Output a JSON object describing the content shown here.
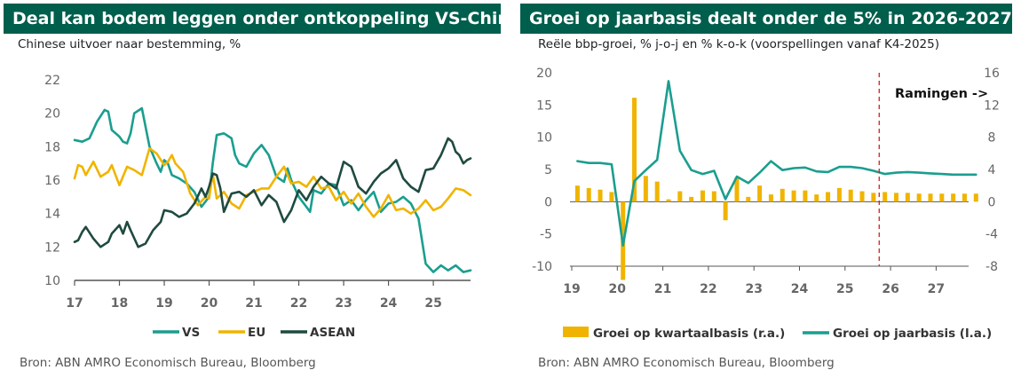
{
  "colors": {
    "green": "#1a9e8f",
    "yellow": "#f0b400",
    "dark": "#1f4a40",
    "title_bg": "#005e4c",
    "dashed": "#d12020"
  },
  "left": {
    "title": "Deal kan bodem leggen onder ontkoppeling VS-China",
    "subtitle": "Chinese uitvoer naar bestemming, %",
    "source": "Bron: ABN AMRO Economisch Bureau, Bloomberg"
  },
  "right": {
    "title": "Groei op jaarbasis dealt onder de 5% in 2026-2027",
    "subtitle": "Reële bbp-groei, % j-o-j en % k-o-k (voorspellingen vanaf K4-2025)",
    "source": "Bron: ABN AMRO Economisch Bureau, Bloomberg"
  },
  "chart_data": [
    {
      "type": "line",
      "title": "Deal kan bodem leggen onder ontkoppeling VS-China",
      "ylabel": "Chinese uitvoer naar bestemming, %",
      "ylim": [
        10,
        22
      ],
      "yticks": [
        "10",
        "12",
        "14",
        "16",
        "18",
        "20",
        "22"
      ],
      "xlim": [
        2017,
        2025.83
      ],
      "xticks": [
        "17",
        "18",
        "19",
        "20",
        "21",
        "22",
        "23",
        "24",
        "25"
      ],
      "legend": [
        "VS",
        "EU",
        "ASEAN"
      ],
      "series": [
        {
          "name": "VS",
          "color": "#1a9e8f",
          "x": [
            2017.0,
            2017.17,
            2017.33,
            2017.5,
            2017.67,
            2017.75,
            2017.83,
            2018.0,
            2018.08,
            2018.17,
            2018.25,
            2018.33,
            2018.5,
            2018.67,
            2018.83,
            2018.92,
            2019.0,
            2019.08,
            2019.17,
            2019.33,
            2019.5,
            2019.67,
            2019.83,
            2020.0,
            2020.08,
            2020.17,
            2020.33,
            2020.5,
            2020.58,
            2020.67,
            2020.83,
            2021.0,
            2021.17,
            2021.33,
            2021.5,
            2021.67,
            2021.75,
            2021.83,
            2022.0,
            2022.17,
            2022.25,
            2022.33,
            2022.5,
            2022.67,
            2022.83,
            2023.0,
            2023.17,
            2023.33,
            2023.5,
            2023.67,
            2023.83,
            2024.0,
            2024.17,
            2024.33,
            2024.5,
            2024.67,
            2024.83,
            2025.0,
            2025.17,
            2025.33,
            2025.5,
            2025.67,
            2025.83
          ],
          "values": [
            18.4,
            18.3,
            18.5,
            19.5,
            20.2,
            20.1,
            19.0,
            18.6,
            18.3,
            18.2,
            18.8,
            20.0,
            20.3,
            18.0,
            17.0,
            16.5,
            17.2,
            17.0,
            16.3,
            16.1,
            15.8,
            15.3,
            14.4,
            15.0,
            17.0,
            18.7,
            18.8,
            18.5,
            17.5,
            17.0,
            16.8,
            17.6,
            18.1,
            17.5,
            16.2,
            15.9,
            16.7,
            16.0,
            15.0,
            14.4,
            14.1,
            15.4,
            15.2,
            15.8,
            15.7,
            14.5,
            14.8,
            14.2,
            14.8,
            15.3,
            14.1,
            14.6,
            14.7,
            15.0,
            14.6,
            13.7,
            11.0,
            10.5,
            10.9,
            10.6,
            10.9,
            10.5,
            10.6
          ]
        },
        {
          "name": "EU",
          "color": "#f0b400",
          "x": [
            2017.0,
            2017.08,
            2017.17,
            2017.25,
            2017.42,
            2017.58,
            2017.75,
            2017.83,
            2018.0,
            2018.17,
            2018.33,
            2018.5,
            2018.67,
            2018.83,
            2019.0,
            2019.08,
            2019.17,
            2019.25,
            2019.42,
            2019.58,
            2019.75,
            2019.92,
            2020.0,
            2020.08,
            2020.17,
            2020.33,
            2020.5,
            2020.67,
            2020.83,
            2021.0,
            2021.17,
            2021.33,
            2021.5,
            2021.67,
            2021.83,
            2022.0,
            2022.17,
            2022.33,
            2022.5,
            2022.67,
            2022.83,
            2023.0,
            2023.17,
            2023.33,
            2023.5,
            2023.67,
            2023.83,
            2024.0,
            2024.17,
            2024.33,
            2024.5,
            2024.67,
            2024.83,
            2025.0,
            2025.17,
            2025.33,
            2025.5,
            2025.67,
            2025.83
          ],
          "values": [
            16.1,
            16.9,
            16.8,
            16.3,
            17.1,
            16.2,
            16.5,
            16.9,
            15.7,
            16.8,
            16.6,
            16.3,
            17.9,
            17.6,
            16.9,
            17.1,
            17.5,
            17.0,
            16.5,
            15.2,
            14.5,
            15.0,
            14.9,
            16.4,
            14.9,
            15.3,
            14.6,
            14.3,
            15.1,
            15.3,
            15.5,
            15.5,
            16.2,
            16.8,
            15.8,
            15.9,
            15.6,
            16.2,
            15.5,
            15.6,
            14.8,
            15.3,
            14.6,
            15.2,
            14.4,
            13.8,
            14.3,
            15.1,
            14.2,
            14.3,
            14.0,
            14.3,
            14.8,
            14.2,
            14.4,
            14.9,
            15.5,
            15.4,
            15.1
          ]
        },
        {
          "name": "ASEAN",
          "color": "#1f4a40",
          "x": [
            2017.0,
            2017.08,
            2017.17,
            2017.25,
            2017.42,
            2017.58,
            2017.75,
            2017.83,
            2018.0,
            2018.08,
            2018.17,
            2018.25,
            2018.42,
            2018.58,
            2018.75,
            2018.92,
            2019.0,
            2019.17,
            2019.33,
            2019.5,
            2019.67,
            2019.83,
            2019.92,
            2020.0,
            2020.08,
            2020.17,
            2020.25,
            2020.33,
            2020.5,
            2020.67,
            2020.83,
            2021.0,
            2021.17,
            2021.33,
            2021.5,
            2021.67,
            2021.83,
            2022.0,
            2022.17,
            2022.33,
            2022.5,
            2022.67,
            2022.83,
            2023.0,
            2023.17,
            2023.33,
            2023.5,
            2023.67,
            2023.83,
            2024.0,
            2024.17,
            2024.33,
            2024.5,
            2024.67,
            2024.83,
            2025.0,
            2025.17,
            2025.33,
            2025.42,
            2025.5,
            2025.58,
            2025.67,
            2025.75,
            2025.83
          ],
          "values": [
            12.3,
            12.4,
            12.9,
            13.2,
            12.5,
            12.0,
            12.3,
            12.8,
            13.3,
            12.8,
            13.5,
            13.0,
            12.0,
            12.2,
            13.0,
            13.5,
            14.2,
            14.1,
            13.8,
            14.0,
            14.6,
            15.5,
            15.0,
            15.6,
            16.4,
            16.3,
            15.5,
            14.1,
            15.2,
            15.3,
            15.0,
            15.4,
            14.5,
            15.1,
            14.7,
            13.5,
            14.2,
            15.4,
            14.8,
            15.6,
            16.2,
            15.8,
            15.5,
            17.1,
            16.8,
            15.6,
            15.2,
            15.9,
            16.4,
            16.7,
            17.2,
            16.1,
            15.6,
            15.3,
            16.6,
            16.7,
            17.5,
            18.5,
            18.3,
            17.7,
            17.5,
            17.0,
            17.2,
            17.3
          ]
        }
      ]
    },
    {
      "type": "bar+line",
      "title": "Groei op jaarbasis dealt onder de 5% in 2026-2027",
      "ylabel": "Reële bbp-groei, % j-o-j en % k-o-k",
      "left_axis": {
        "ylim": [
          -10,
          20
        ],
        "yticks": [
          "-10",
          "-5",
          "0",
          "5",
          "10",
          "15",
          "20"
        ]
      },
      "right_axis": {
        "ylim": [
          -8,
          16
        ],
        "yticks": [
          "-8",
          "-4",
          "0",
          "4",
          "8",
          "12",
          "16"
        ]
      },
      "xticks": [
        "19",
        "20",
        "21",
        "22",
        "23",
        "24",
        "25",
        "26",
        "27"
      ],
      "forecast_label": "Ramingen ->",
      "forecast_start": "K4-2025",
      "legend": [
        "Groei op kwartaalbasis (r.a.)",
        "Groei op jaarbasis (l.a.)"
      ],
      "series": [
        {
          "name": "Groei op kwartaalbasis (r.a.)",
          "type": "bar",
          "axis": "right",
          "color": "#f0b400",
          "categories": [
            "2019K1",
            "2019K2",
            "2019K3",
            "2019K4",
            "2020K1",
            "2020K2",
            "2020K3",
            "2020K4",
            "2021K1",
            "2021K2",
            "2021K3",
            "2021K4",
            "2022K1",
            "2022K2",
            "2022K3",
            "2022K4",
            "2023K1",
            "2023K2",
            "2023K3",
            "2023K4",
            "2024K1",
            "2024K2",
            "2024K3",
            "2024K4",
            "2025K1",
            "2025K2",
            "2025K3",
            "2025K4",
            "2026K1",
            "2026K2",
            "2026K3",
            "2026K4",
            "2027K1",
            "2027K2",
            "2027K3",
            "2027K4"
          ],
          "values": [
            2.0,
            1.7,
            1.5,
            1.2,
            -9.7,
            12.9,
            3.2,
            2.5,
            0.3,
            1.3,
            0.6,
            1.4,
            1.3,
            -2.3,
            3.0,
            0.6,
            2.0,
            0.9,
            1.6,
            1.4,
            1.4,
            0.9,
            1.2,
            1.7,
            1.5,
            1.3,
            1.1,
            1.2,
            1.1,
            1.1,
            1.0,
            1.0,
            1.0,
            1.0,
            1.0,
            1.0
          ]
        },
        {
          "name": "Groei op jaarbasis (l.a.)",
          "type": "line",
          "axis": "left",
          "color": "#1a9e8f",
          "categories": [
            "2019K1",
            "2019K2",
            "2019K3",
            "2019K4",
            "2020K1",
            "2020K2",
            "2020K3",
            "2020K4",
            "2021K1",
            "2021K2",
            "2021K3",
            "2021K4",
            "2022K1",
            "2022K2",
            "2022K3",
            "2022K4",
            "2023K1",
            "2023K2",
            "2023K3",
            "2023K4",
            "2024K1",
            "2024K2",
            "2024K3",
            "2024K4",
            "2025K1",
            "2025K2",
            "2025K3",
            "2025K4",
            "2026K1",
            "2026K2",
            "2026K3",
            "2026K4",
            "2027K1",
            "2027K2",
            "2027K3",
            "2027K4"
          ],
          "values": [
            6.3,
            6.0,
            6.0,
            5.8,
            -6.8,
            3.2,
            4.9,
            6.5,
            18.7,
            7.9,
            4.9,
            4.3,
            4.8,
            0.4,
            3.9,
            2.9,
            4.5,
            6.3,
            4.9,
            5.2,
            5.3,
            4.7,
            4.6,
            5.4,
            5.4,
            5.2,
            4.8,
            4.3,
            4.5,
            4.6,
            4.5,
            4.4,
            4.3,
            4.2,
            4.2,
            4.2
          ]
        }
      ]
    }
  ]
}
